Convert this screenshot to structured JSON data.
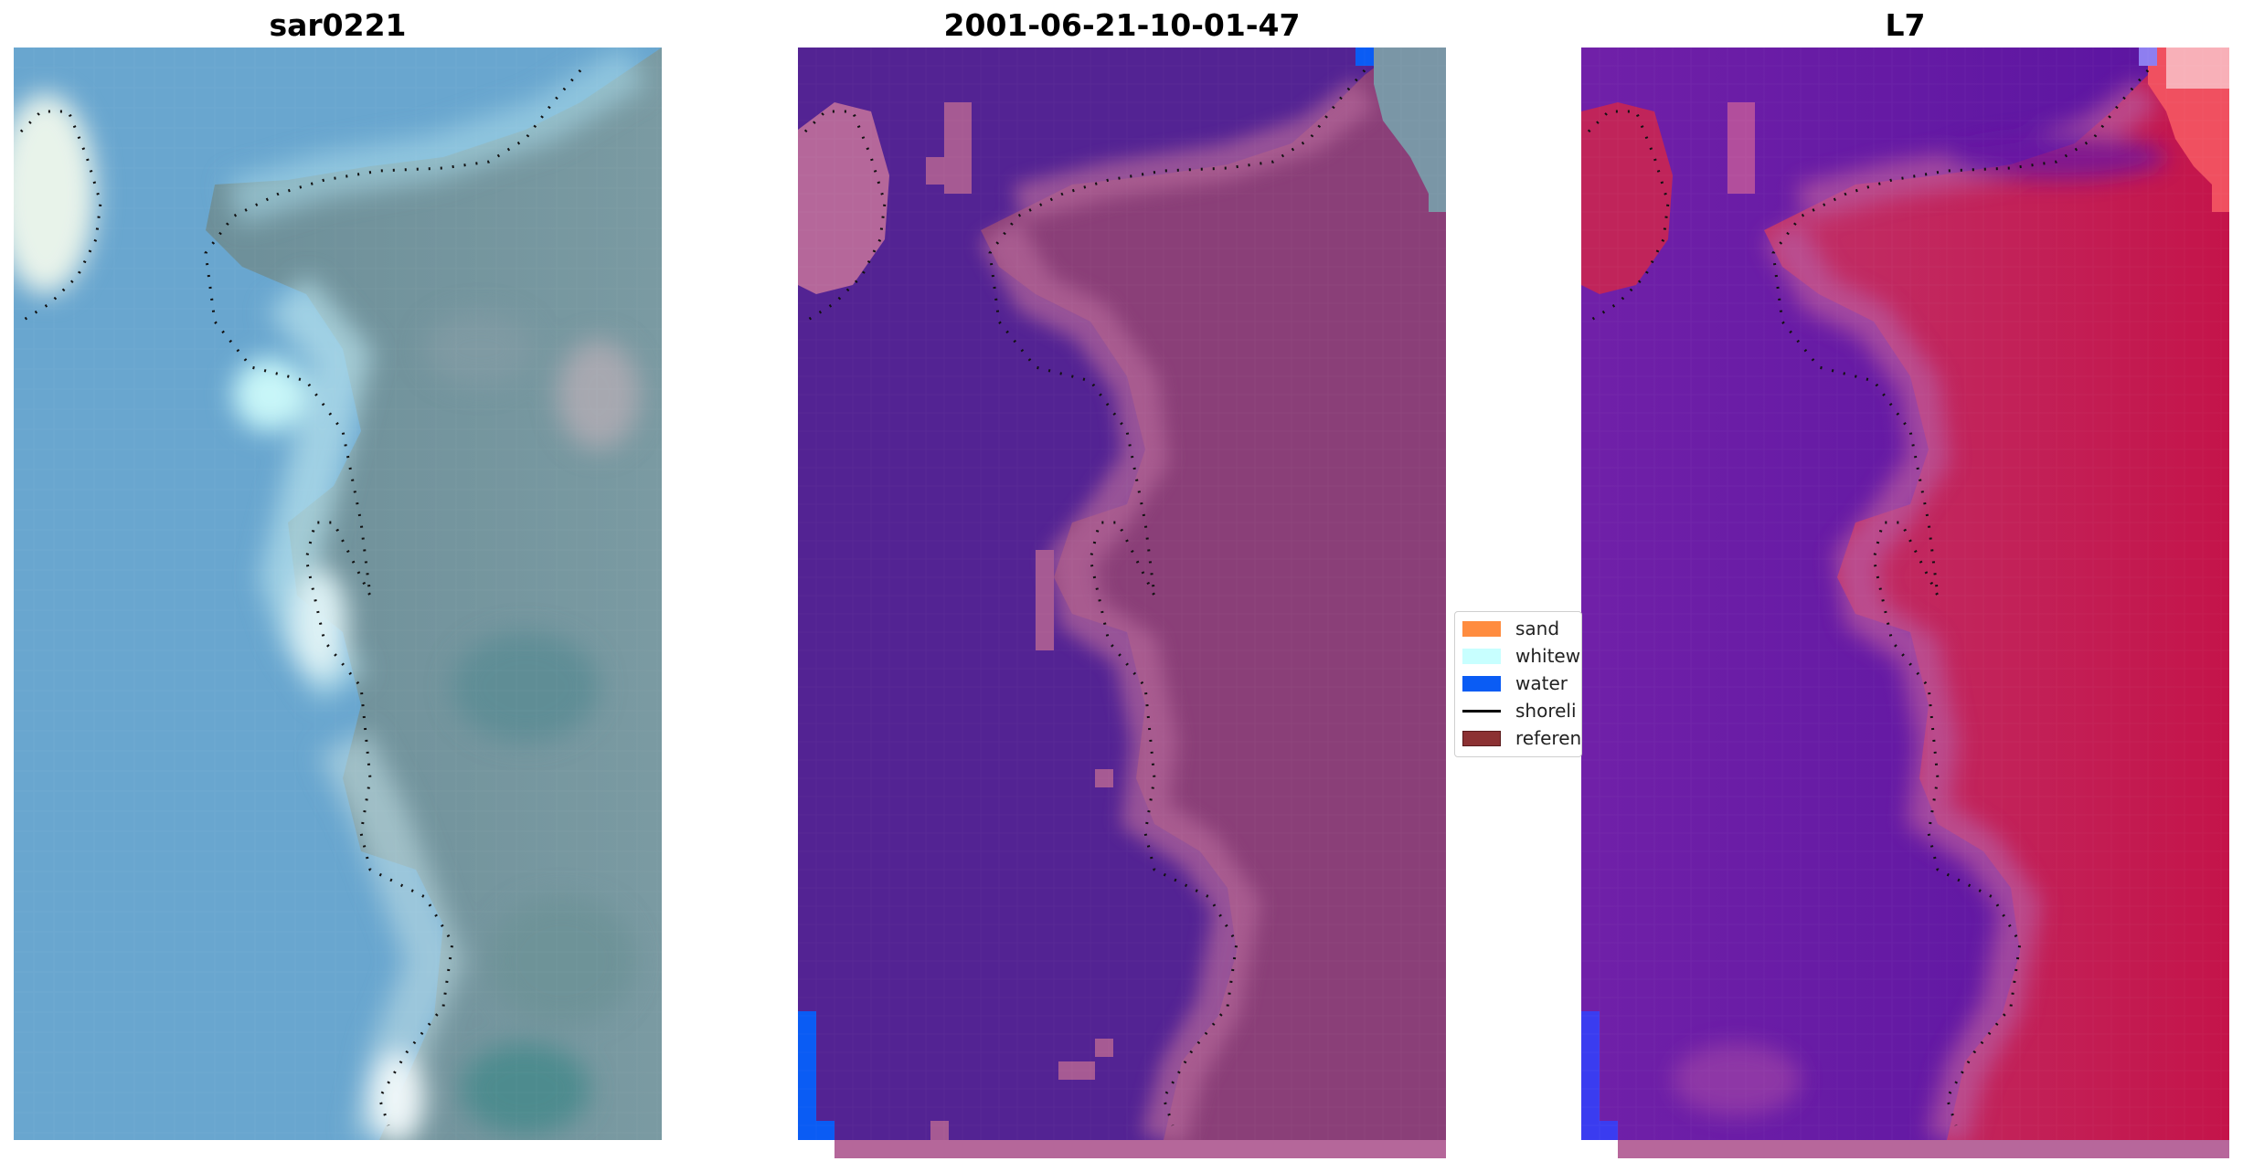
{
  "panels": [
    {
      "title": "sar0221",
      "colors": {
        "left": "#6aa2cf",
        "right": "#5e8e94",
        "accent": "#d8f4f4"
      }
    },
    {
      "title": "2001-06-21-10-01-47",
      "colors": {
        "left": "#532393",
        "right": "#8a3f78",
        "accent": "#b8639b",
        "water": "#0a5cf4"
      }
    },
    {
      "title": "L7",
      "colors": {
        "left": "#6a18a8",
        "right": "#c01e52",
        "accent": "#ff6a6a",
        "water": "#3a3cf0"
      }
    }
  ],
  "legend": {
    "items": [
      {
        "label": "sand",
        "color": "#ff8c3f",
        "kind": "patch"
      },
      {
        "label": "whitew",
        "color": "#c8ffff",
        "kind": "patch"
      },
      {
        "label": "water",
        "color": "#0a5cf4",
        "kind": "patch"
      },
      {
        "label": "shoreli",
        "color": "#000000",
        "kind": "line"
      },
      {
        "label": "referen",
        "color": "#8c3133",
        "kind": "patch"
      }
    ]
  }
}
